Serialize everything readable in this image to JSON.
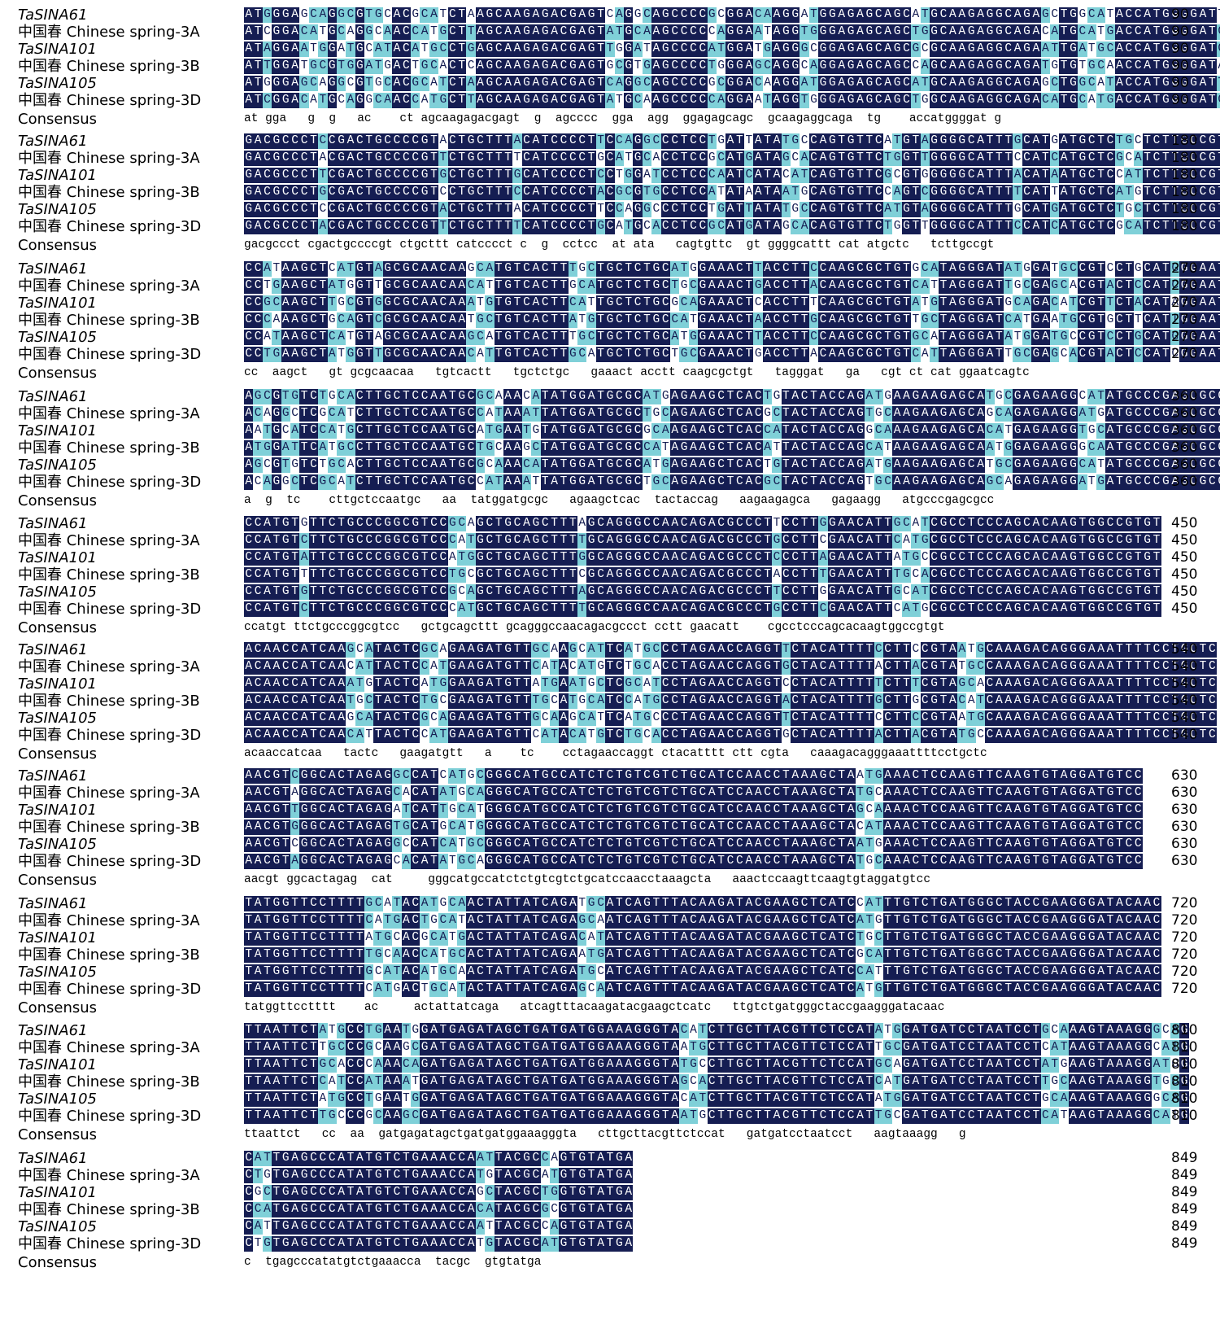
{
  "alignment": {
    "sequence_names": [
      {
        "label": "TaSINA61",
        "italic": true
      },
      {
        "label": "中国春 Chinese spring-3A",
        "italic": false
      },
      {
        "label": "TaSINA101",
        "italic": true
      },
      {
        "label": "中国春 Chinese spring-3B",
        "italic": false
      },
      {
        "label": "TaSINA105",
        "italic": true
      },
      {
        "label": "中国春 Chinese spring-3D",
        "italic": false
      }
    ],
    "consensus_label": "Consensus",
    "colors": {
      "identical": "#151d52",
      "partial": "#7fd0d8",
      "mismatch": "#ffffff"
    },
    "blocks": [
      {
        "end": "90",
        "consensus": "at gga   g  g   ac    ct agcaagagacgagt  g  agcccc  gga  agg  ggagagcagc  gcaagaggcaga  tg    accatggggat g"
      },
      {
        "end": "180",
        "consensus": "gacgccct cgactgccccgt ctgcttt catcccct c  g  cctcc  at ata   cagtgttc  gt ggggcattt cat atgctc   tcttgccgt"
      },
      {
        "end": "270",
        "consensus": "cc  aagct   gt gcgcaacaa   tgtcactt   tgctctgc   gaaact acctt caagcgctgt   tagggat   ga   cgt ct cat ggaatcagtc"
      },
      {
        "end": "360",
        "consensus": "a  g  tc    cttgctccaatgc   aa  tatggatgcgc   agaagctcac  tactaccag   aagaagagca   gagaagg   atgcccgagcgcc"
      },
      {
        "end": "450",
        "consensus": "ccatgt ttctgcccggcgtcc   gctgcagcttt gcagggccaacagacgccct cctt gaacatt    cgcctcccagcacaagtggccgtgt"
      },
      {
        "end": "540",
        "consensus": "acaaccatcaa   tactc   gaagatgtt   a    tc    cctagaaccaggt ctacatttt ctt cgta   caaagacagggaaattttcctgctc"
      },
      {
        "end": "630",
        "consensus": "aacgt ggcactagag  cat     gggcatgccatctctgtcgtctgcatccaacctaaagcta   aaactccaagttcaagtgtaggatgtcc"
      },
      {
        "end": "720",
        "consensus": "tatggttcctttt    ac     actattatcaga   atcagtttacaagatacgaagctcatc   ttgtctgatgggctaccgaagggatacaac"
      },
      {
        "end": "810",
        "consensus": "ttaattct   cc  aa  gatgagatagctgatgatggaaagggta   cttgcttacgttctccat   gatgatcctaatcct   aagtaaagg   g"
      },
      {
        "end": "849",
        "consensus": "c  tgagcccatatgtctgaaacca  tacgc  gtgtatga"
      }
    ]
  }
}
